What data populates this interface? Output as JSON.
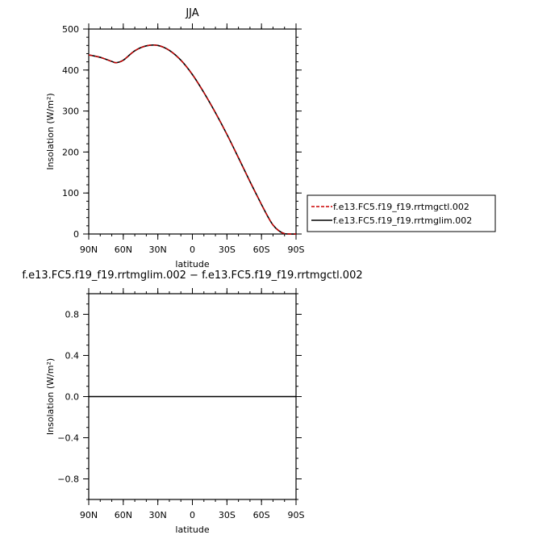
{
  "chart_data": [
    {
      "type": "line",
      "title": "JJA",
      "xlabel": "latitude",
      "ylabel": "Insolation (W/m²)",
      "x": [
        90,
        80,
        70,
        66,
        60,
        50,
        40,
        30,
        20,
        10,
        0,
        -10,
        -20,
        -30,
        -40,
        -50,
        -60,
        -66,
        -70,
        -75,
        -80,
        -85,
        -90
      ],
      "xticks": [
        90,
        60,
        30,
        0,
        -30,
        -60,
        -90
      ],
      "xtick_labels": [
        "90N",
        "60N",
        "30N",
        "0",
        "30S",
        "60S",
        "90S"
      ],
      "xlim": [
        90,
        -90
      ],
      "ylim": [
        0,
        500
      ],
      "yticks": [
        0,
        100,
        200,
        300,
        400,
        500
      ],
      "ytick_labels": [
        "0",
        "100",
        "200",
        "300",
        "400",
        "500"
      ],
      "series": [
        {
          "name": "f.e13.FC5.f19_f19.rrtmgctl.002",
          "color": "#cc0000",
          "dash": "dashed",
          "values": [
            437,
            431,
            421,
            418,
            424,
            447,
            459,
            460,
            448,
            424,
            389,
            345,
            296,
            243,
            186,
            128,
            72,
            40,
            22,
            8,
            1,
            0,
            0
          ]
        },
        {
          "name": "f.e13.FC5.f19_f19.rrtmglim.002",
          "color": "#000000",
          "dash": "solid",
          "values": [
            437,
            431,
            421,
            418,
            424,
            447,
            459,
            460,
            448,
            424,
            389,
            345,
            296,
            243,
            186,
            128,
            72,
            40,
            22,
            8,
            1,
            0,
            0
          ]
        }
      ],
      "legend_position": "right"
    },
    {
      "type": "line",
      "title": "f.e13.FC5.f19_f19.rrtmglim.002 − f.e13.FC5.f19_f19.rrtmgctl.002",
      "xlabel": "latitude",
      "ylabel": "Insolation (W/m²)",
      "x": [
        90,
        -90
      ],
      "xticks": [
        90,
        60,
        30,
        0,
        -30,
        -60,
        -90
      ],
      "xtick_labels": [
        "90N",
        "60N",
        "30N",
        "0",
        "30S",
        "60S",
        "90S"
      ],
      "xlim": [
        90,
        -90
      ],
      "ylim": [
        -1,
        1
      ],
      "yticks": [
        -0.8,
        -0.4,
        0,
        0.4,
        0.8
      ],
      "ytick_labels": [
        "−0.8",
        "−0.4",
        "0.0",
        "0.4",
        "0.8"
      ],
      "series": [
        {
          "color": "#000000",
          "dash": "solid",
          "values": [
            0,
            0
          ]
        }
      ]
    }
  ]
}
